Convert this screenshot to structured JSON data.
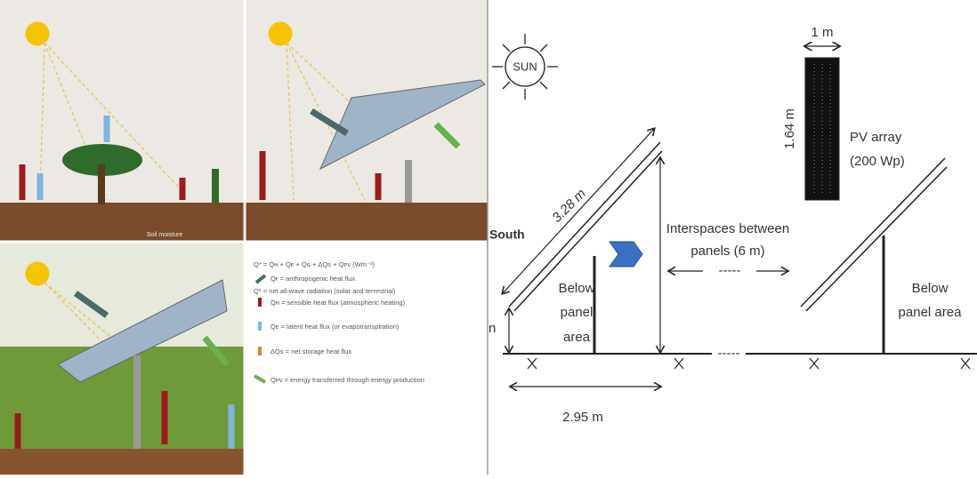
{
  "illustration": {
    "soil_label": "Soil moisture",
    "legend": [
      "Q* = Qʜ + Qᴇ + Qɢ + ΔQѕ + Qᴘᴠ (Wm⁻²)",
      "Q* = net all-wave radiation (solar and terrestrial)",
      "Qғ = anthropogenic heat flux",
      "Qʜ = sensible heat flux (atmospheric heating)",
      "Qᴇ = latent heat flux (or evapotranspiration)",
      "ΔQѕ = net storage heat flux",
      "Qᴘᴠ = energy transferred through energy production"
    ]
  },
  "layout": {
    "sun": "SUN",
    "width": "1 m",
    "height": "1.64 m",
    "array_label": "PV array",
    "array_power": "(200 Wp)",
    "panel_length": "3.28 m",
    "direction": "South",
    "interspace_1": "Interspaces between",
    "interspace_2": "panels (6 m)",
    "interspace_dash": "-----",
    "ground_dash": "-----",
    "below_left": [
      "Below",
      "panel",
      "area"
    ],
    "below_right": [
      "Below",
      "panel area"
    ],
    "base": "2.95 m",
    "clearance": "n"
  }
}
